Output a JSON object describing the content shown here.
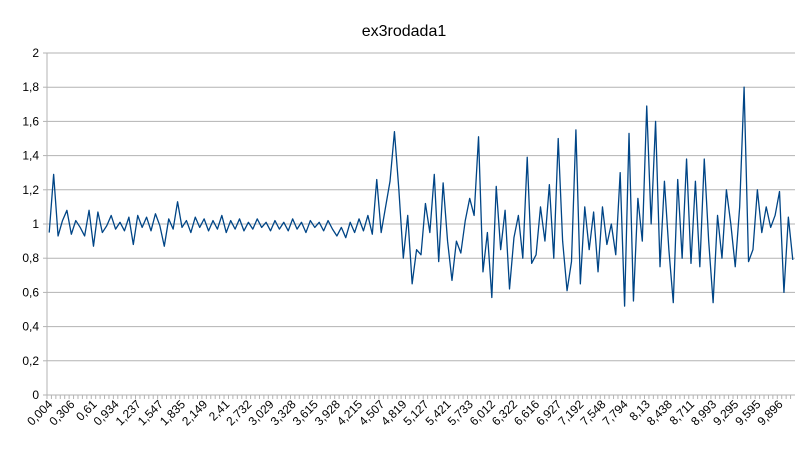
{
  "chart_data": {
    "type": "line",
    "title": "ex3rodada1",
    "categories": [
      "0,004",
      null,
      null,
      null,
      null,
      "0,306",
      null,
      null,
      null,
      null,
      "0,61",
      null,
      null,
      null,
      null,
      "0,934",
      null,
      null,
      null,
      null,
      "1,237",
      null,
      null,
      null,
      null,
      "1,547",
      null,
      null,
      null,
      null,
      "1,835",
      null,
      null,
      null,
      null,
      "2,149",
      null,
      null,
      null,
      null,
      "2,41",
      null,
      null,
      null,
      null,
      "2,732",
      null,
      null,
      null,
      null,
      "3,029",
      null,
      null,
      null,
      null,
      "3,328",
      null,
      null,
      null,
      null,
      "3,615",
      null,
      null,
      null,
      null,
      "3,928",
      null,
      null,
      null,
      null,
      "4,215",
      null,
      null,
      null,
      null,
      "4,507",
      null,
      null,
      null,
      null,
      "4,819",
      null,
      null,
      null,
      null,
      "5,127",
      null,
      null,
      null,
      null,
      "5,421",
      null,
      null,
      null,
      null,
      "5,733",
      null,
      null,
      null,
      null,
      "6,012",
      null,
      null,
      null,
      null,
      "6,322",
      null,
      null,
      null,
      null,
      "6,616",
      null,
      null,
      null,
      null,
      "6,927",
      null,
      null,
      null,
      null,
      "7,192",
      null,
      null,
      null,
      null,
      "7,548",
      null,
      null,
      null,
      null,
      "7,794",
      null,
      null,
      null,
      null,
      "8,13",
      null,
      null,
      null,
      null,
      "8,438",
      null,
      null,
      null,
      null,
      "8,711",
      null,
      null,
      null,
      null,
      "8,993",
      null,
      null,
      null,
      null,
      "9,295",
      null,
      null,
      null,
      null,
      "9,595",
      null,
      null,
      null,
      null,
      "9,896",
      null,
      null,
      null
    ],
    "values": [
      0.95,
      1.29,
      0.93,
      1.02,
      1.08,
      0.94,
      1.02,
      0.98,
      0.93,
      1.08,
      0.87,
      1.07,
      0.95,
      0.99,
      1.05,
      0.97,
      1.01,
      0.96,
      1.04,
      0.88,
      1.05,
      0.98,
      1.04,
      0.96,
      1.06,
      0.99,
      0.87,
      1.03,
      0.97,
      1.13,
      0.98,
      1.02,
      0.95,
      1.04,
      0.98,
      1.03,
      0.96,
      1.02,
      0.97,
      1.05,
      0.95,
      1.02,
      0.97,
      1.03,
      0.96,
      1.01,
      0.97,
      1.03,
      0.98,
      1.01,
      0.96,
      1.02,
      0.97,
      1.01,
      0.96,
      1.03,
      0.97,
      1.01,
      0.95,
      1.02,
      0.98,
      1.01,
      0.96,
      1.02,
      0.97,
      0.93,
      0.98,
      0.92,
      1.01,
      0.95,
      1.03,
      0.96,
      1.05,
      0.94,
      1.26,
      0.95,
      1.1,
      1.25,
      1.54,
      1.2,
      0.8,
      1.05,
      0.65,
      0.85,
      0.82,
      1.12,
      0.95,
      1.29,
      0.78,
      1.24,
      0.9,
      0.67,
      0.9,
      0.83,
      1.02,
      1.15,
      1.05,
      1.51,
      0.72,
      0.95,
      0.57,
      1.22,
      0.85,
      1.08,
      0.62,
      0.92,
      1.05,
      0.8,
      1.39,
      0.77,
      0.82,
      1.1,
      0.9,
      1.23,
      0.8,
      1.5,
      0.9,
      0.61,
      0.78,
      1.55,
      0.65,
      1.1,
      0.85,
      1.07,
      0.72,
      1.1,
      0.88,
      1.0,
      0.82,
      1.3,
      0.52,
      1.53,
      0.55,
      1.15,
      0.9,
      1.69,
      1.0,
      1.6,
      0.75,
      1.25,
      0.85,
      0.54,
      1.26,
      0.8,
      1.38,
      0.77,
      1.25,
      0.75,
      1.38,
      0.9,
      0.54,
      1.05,
      0.8,
      1.2,
      1.0,
      0.75,
      1.1,
      1.8,
      0.78,
      0.85,
      1.2,
      0.95,
      1.1,
      0.98,
      1.05,
      1.19,
      0.6,
      1.04,
      0.79
    ],
    "color": "#004586",
    "ylim": [
      0,
      2
    ],
    "yticks": [
      0,
      {
        "value": 0.2,
        "label": "0,2"
      },
      {
        "value": 0.4,
        "label": "0,4"
      },
      {
        "value": 0.6,
        "label": "0,6"
      },
      {
        "value": 0.8,
        "label": "0,8"
      },
      1,
      {
        "value": 1.2,
        "label": "1,2"
      },
      {
        "value": 1.4,
        "label": "1,4"
      },
      {
        "value": 1.6,
        "label": "1,6"
      },
      {
        "value": 1.8,
        "label": "1,8"
      },
      2
    ],
    "grid": true
  }
}
